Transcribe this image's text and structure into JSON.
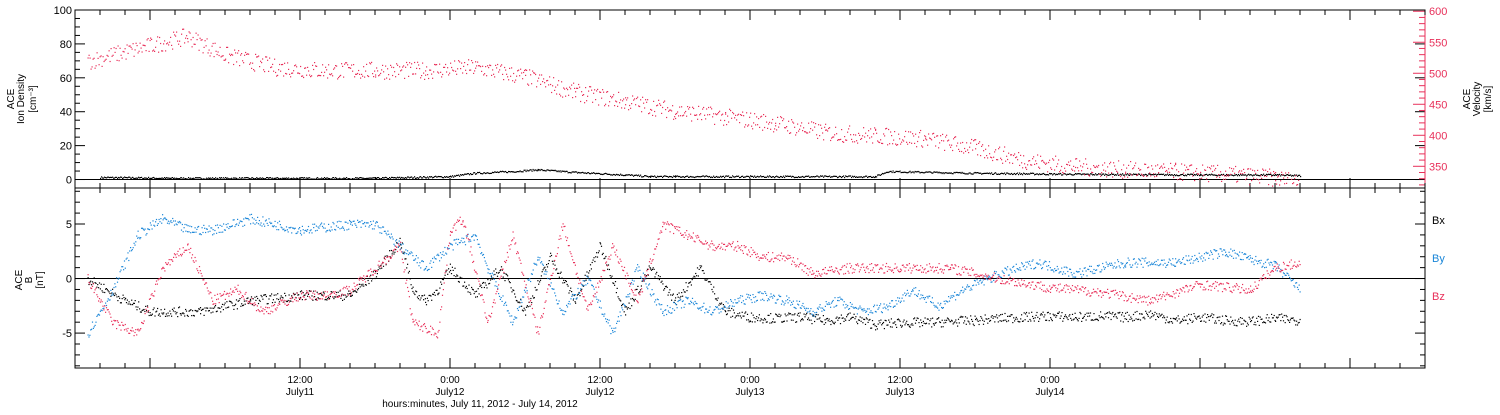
{
  "colors": {
    "ion_density": "#000000",
    "velocity": "#e8305a",
    "bx": "#000000",
    "by": "#1a86d8",
    "bz": "#e8305a",
    "frame": "#000000"
  },
  "chart_data": [
    {
      "type": "scatter",
      "panel": "top",
      "ylabel_lines": [
        "ACE",
        "Ion Density",
        "[cm⁻³]"
      ],
      "ylabel_right_lines": [
        "ACE",
        "Velocity",
        "[km/s]"
      ],
      "ylim": [
        -5,
        100
      ],
      "yticks": [
        0,
        20,
        40,
        60,
        80,
        100
      ],
      "ylim_right": [
        315,
        602
      ],
      "yticks_right": [
        350,
        400,
        450,
        500,
        550,
        600
      ],
      "reference_line_y": 0,
      "series": [
        {
          "key": "ion_density",
          "axis": "left",
          "points_t_hours": [
            -4,
            2,
            10,
            18,
            24,
            26,
            29,
            31,
            34,
            38,
            40,
            42,
            48,
            58,
            59,
            66,
            72,
            84,
            90,
            92
          ],
          "points_value": [
            1.5,
            1,
            1,
            1,
            2,
            4,
            5,
            6,
            4.5,
            3,
            2,
            2,
            2,
            2,
            5,
            4,
            3.5,
            3,
            3,
            2.5
          ]
        },
        {
          "key": "velocity",
          "axis": "right",
          "points_t_hours": [
            -5,
            -3,
            0,
            3,
            6,
            10,
            14,
            18,
            22,
            26,
            30,
            34,
            38,
            42,
            46,
            50,
            54,
            58,
            62,
            66,
            70,
            74,
            78,
            82,
            86,
            90,
            92
          ],
          "points_value": [
            520,
            530,
            545,
            560,
            530,
            510,
            505,
            505,
            505,
            510,
            495,
            470,
            455,
            440,
            430,
            420,
            405,
            400,
            395,
            380,
            360,
            350,
            345,
            342,
            338,
            332,
            325
          ]
        }
      ]
    },
    {
      "type": "scatter",
      "panel": "bottom",
      "ylabel_lines": [
        "ACE",
        "B",
        "[nT]"
      ],
      "ylim": [
        -8.2,
        8.3
      ],
      "yticks": [
        -5,
        0,
        5
      ],
      "reference_line_y": 0,
      "legend": [
        "Bx",
        "By",
        "Bz"
      ],
      "legend_position": "right",
      "series": [
        {
          "key": "bx",
          "name": "Bx",
          "points_t_hours": [
            -5,
            -2,
            0,
            4,
            8,
            12,
            16,
            18,
            20,
            21,
            22,
            23,
            24,
            26,
            28,
            30,
            32,
            34,
            36,
            38,
            40,
            42,
            44,
            46,
            48,
            50,
            52,
            54,
            56,
            58,
            60,
            62,
            64,
            66,
            68,
            70,
            72,
            74,
            76,
            78,
            80,
            82,
            84,
            86,
            88,
            90,
            92
          ],
          "points_value": [
            0,
            -2,
            -3,
            -3,
            -2,
            -1.5,
            -1.5,
            0.5,
            3.5,
            -1,
            -2,
            -1,
            1,
            -1.5,
            1,
            -3,
            2,
            -2,
            3,
            -3,
            1,
            -2,
            1,
            -3,
            -3.5,
            -3.6,
            -3.5,
            -3.8,
            -3.5,
            -4.2,
            -4.0,
            -4.0,
            -3.9,
            -3.8,
            -3.6,
            -3.5,
            -3.4,
            -3.5,
            -3.4,
            -3.5,
            -3.2,
            -3.8,
            -3.5,
            -3.8,
            -3.9,
            -3.6,
            -3.8
          ]
        },
        {
          "key": "by",
          "name": "By",
          "points_t_hours": [
            -5,
            -3,
            -1,
            1,
            3,
            5,
            8,
            12,
            16,
            18,
            20,
            22,
            24,
            26,
            27,
            29,
            31,
            33,
            35,
            37,
            39,
            41,
            43,
            45,
            47,
            49,
            51,
            53,
            55,
            57,
            59,
            61,
            63,
            65,
            68,
            71,
            74,
            78,
            82,
            86,
            88,
            90,
            92
          ],
          "points_value": [
            -5,
            -1,
            4,
            5.5,
            4.5,
            4.5,
            5.5,
            4.5,
            5,
            5,
            3,
            1,
            3,
            4,
            1,
            -4,
            2,
            -3,
            0,
            -5,
            1,
            -3,
            -2,
            -3,
            -2,
            -1.5,
            -2,
            -3,
            -2,
            -3,
            -2.5,
            -1,
            -2.5,
            -1,
            0.5,
            1.5,
            0.5,
            1.5,
            1.5,
            2.5,
            1.8,
            1.2,
            -1
          ]
        },
        {
          "key": "bz",
          "name": "Bz",
          "points_t_hours": [
            -5,
            -3,
            -1,
            1,
            3,
            5,
            7,
            9,
            12,
            14,
            16,
            18,
            20,
            21,
            23,
            24,
            25,
            27,
            29,
            31,
            33,
            35,
            37,
            39,
            41,
            43,
            45,
            47,
            49,
            51,
            53,
            56,
            60,
            64,
            68,
            72,
            76,
            80,
            84,
            88,
            90,
            92
          ],
          "points_value": [
            0,
            -4,
            -5,
            1,
            3,
            -2,
            -1,
            -3,
            -1.5,
            -1.5,
            -1,
            1,
            3,
            -4,
            -5,
            4.5,
            5.5,
            -4,
            4,
            -5,
            5,
            -3,
            3,
            -2,
            5,
            4,
            3,
            3,
            2,
            2,
            0.5,
            1,
            1,
            1,
            0,
            -0.8,
            -1.2,
            -2,
            -0.5,
            -1,
            1,
            1.5
          ]
        }
      ]
    }
  ],
  "x_axis": {
    "t_range_hours": [
      -6,
      102
    ],
    "ticks": [
      {
        "t_hours": 12,
        "top": "12:00",
        "bottom": "July11"
      },
      {
        "t_hours": 24,
        "top": "0:00",
        "bottom": "July12"
      },
      {
        "t_hours": 36,
        "top": "12:00",
        "bottom": "July12"
      },
      {
        "t_hours": 48,
        "top": "0:00",
        "bottom": "July13"
      },
      {
        "t_hours": 60,
        "top": "12:00",
        "bottom": "July13"
      },
      {
        "t_hours": 72,
        "top": "0:00",
        "bottom": "July14"
      }
    ],
    "title": "hours:minutes, July 11, 2012 - July 14, 2012"
  }
}
